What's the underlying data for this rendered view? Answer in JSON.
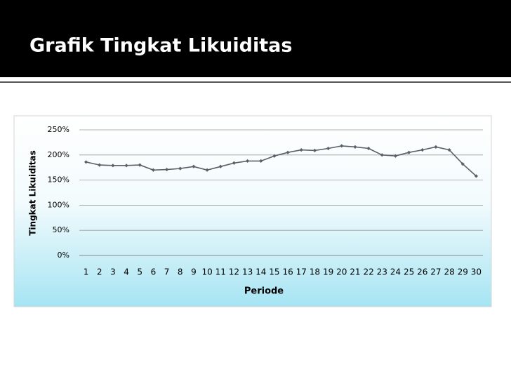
{
  "chart_data": {
    "type": "line",
    "title": "Grafik Tingkat Likuiditas",
    "x_label": "Periode",
    "y_label": "Tingkat Likuiditas",
    "categories": [
      1,
      2,
      3,
      4,
      5,
      6,
      7,
      8,
      9,
      10,
      11,
      12,
      13,
      14,
      15,
      16,
      17,
      18,
      19,
      20,
      21,
      22,
      23,
      24,
      25,
      26,
      27,
      28,
      29,
      30
    ],
    "series": [
      {
        "color": "#5b5f66",
        "values": [
          186,
          180,
          179,
          179,
          180,
          170,
          171,
          173,
          177,
          170,
          177,
          184,
          188,
          188,
          198,
          205,
          210,
          209,
          213,
          218,
          216,
          213,
          200,
          198,
          205,
          210,
          216,
          210,
          182,
          158
        ]
      }
    ],
    "ylim": [
      0,
      250
    ],
    "yticks": [
      {
        "value": 0,
        "label": "0%"
      },
      {
        "value": 50,
        "label": "50%"
      },
      {
        "value": 100,
        "label": "100%"
      },
      {
        "value": 150,
        "label": "150%"
      },
      {
        "value": 200,
        "label": "200%"
      },
      {
        "value": 250,
        "label": "250%"
      }
    ],
    "grid": true
  }
}
